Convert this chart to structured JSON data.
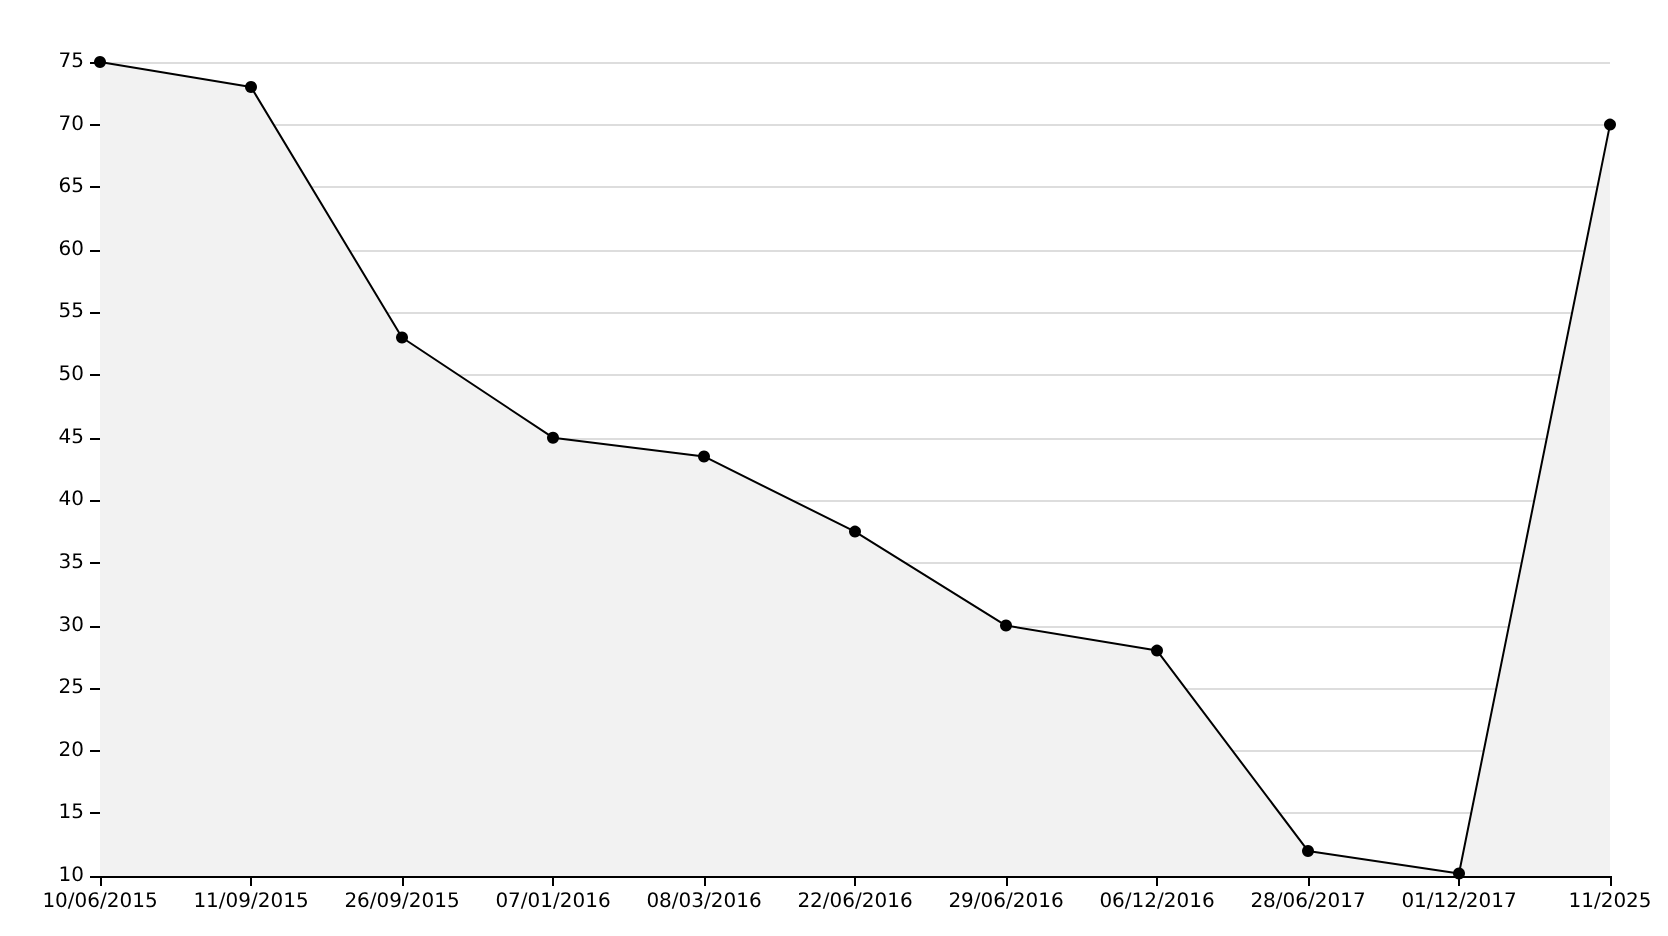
{
  "chart_data": {
    "type": "area",
    "categories": [
      "10/06/2015",
      "11/09/2015",
      "26/09/2015",
      "07/01/2016",
      "08/03/2016",
      "22/06/2016",
      "29/06/2016",
      "06/12/2016",
      "28/06/2017",
      "01/12/2017",
      "11/2025"
    ],
    "series": [
      {
        "color": "#000000",
        "values": [
          75,
          73,
          53,
          45,
          43.5,
          37.5,
          30,
          28,
          12,
          10.2,
          70
        ]
      }
    ],
    "ylim": [
      10,
      75
    ],
    "yticks": [
      10,
      15,
      20,
      25,
      30,
      35,
      40,
      45,
      50,
      55,
      60,
      65,
      70,
      75
    ],
    "grid": "y",
    "marker": "circle",
    "line_style": "solid"
  }
}
